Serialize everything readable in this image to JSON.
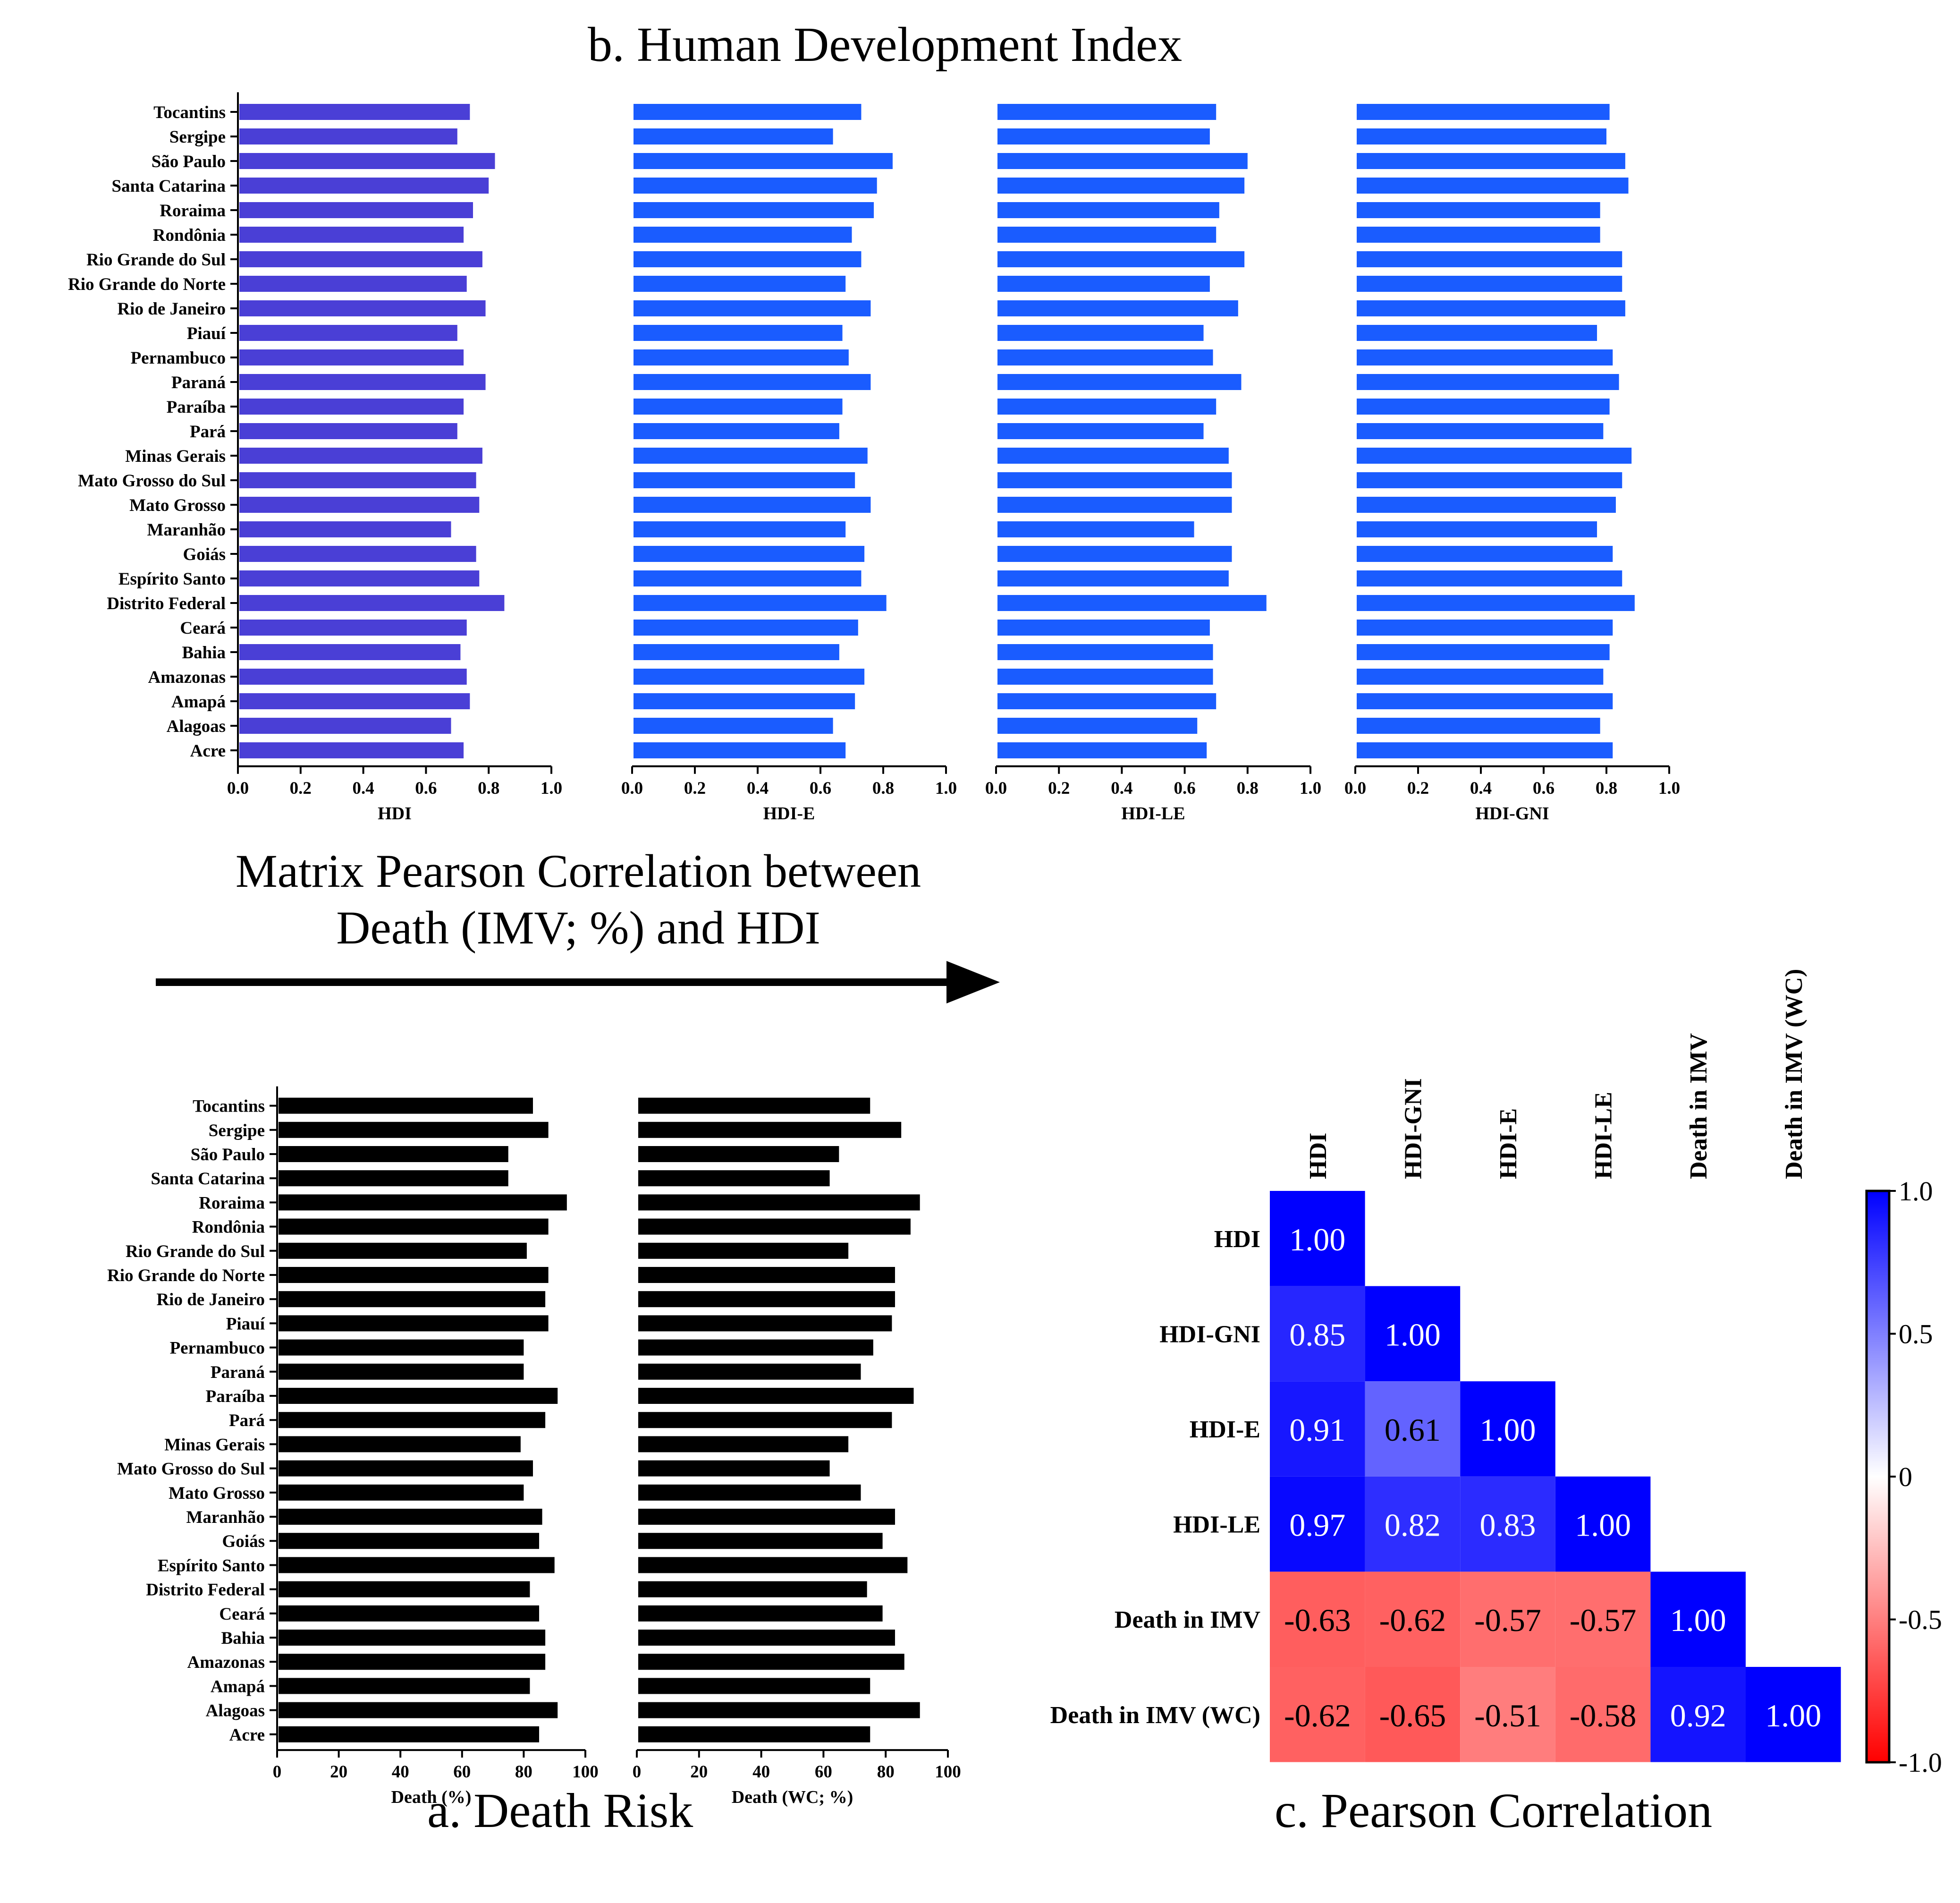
{
  "figure": {
    "panel_b_title": "b. Human Development Index",
    "panel_a_title": "a. Death Risk",
    "panel_c_title": "c. Pearson Correlation",
    "matrix_heading_line1": "Matrix Pearson Correlation between",
    "matrix_heading_line2": "Death (IMV; %) and HDI"
  },
  "colors": {
    "hdi_bar": "#4a3fd6",
    "hdi_sub_bar": "#1a5cff",
    "death_bar": "#000000",
    "corr_positive": "#0000ff",
    "corr_negative": "#ff0000",
    "arrow": "#000000"
  },
  "chart_data": [
    {
      "id": "hdi",
      "type": "bar",
      "orientation": "horizontal",
      "categories": [
        "Tocantins",
        "Sergipe",
        "São Paulo",
        "Santa Catarina",
        "Roraima",
        "Rondônia",
        "Rio Grande do Sul",
        "Rio Grande do Norte",
        "Rio de Janeiro",
        "Piauí",
        "Pernambuco",
        "Paraná",
        "Paraíba",
        "Pará",
        "Minas Gerais",
        "Mato Grosso do Sul",
        "Mato Grosso",
        "Maranhão",
        "Goiás",
        "Espírito Santo",
        "Distrito Federal",
        "Ceará",
        "Bahia",
        "Amazonas",
        "Amapá",
        "Alagoas",
        "Acre"
      ],
      "values": [
        0.74,
        0.7,
        0.82,
        0.8,
        0.75,
        0.72,
        0.78,
        0.73,
        0.79,
        0.7,
        0.72,
        0.79,
        0.72,
        0.7,
        0.78,
        0.76,
        0.77,
        0.68,
        0.76,
        0.77,
        0.85,
        0.73,
        0.71,
        0.73,
        0.74,
        0.68,
        0.72
      ],
      "xlabel": "HDI",
      "xlim": [
        0,
        1.0
      ],
      "xticks": [
        "0.0",
        "0.2",
        "0.4",
        "0.6",
        "0.8",
        "1.0"
      ]
    },
    {
      "id": "hdi-e",
      "type": "bar",
      "orientation": "horizontal",
      "values": [
        0.73,
        0.64,
        0.83,
        0.78,
        0.77,
        0.7,
        0.73,
        0.68,
        0.76,
        0.67,
        0.69,
        0.76,
        0.67,
        0.66,
        0.75,
        0.71,
        0.76,
        0.68,
        0.74,
        0.73,
        0.81,
        0.72,
        0.66,
        0.74,
        0.71,
        0.64,
        0.68
      ],
      "xlabel": "HDI-E",
      "xlim": [
        0,
        1.0
      ],
      "xticks": [
        "0.0",
        "0.2",
        "0.4",
        "0.6",
        "0.8",
        "1.0"
      ]
    },
    {
      "id": "hdi-le",
      "type": "bar",
      "orientation": "horizontal",
      "values": [
        0.7,
        0.68,
        0.8,
        0.79,
        0.71,
        0.7,
        0.79,
        0.68,
        0.77,
        0.66,
        0.69,
        0.78,
        0.7,
        0.66,
        0.74,
        0.75,
        0.75,
        0.63,
        0.75,
        0.74,
        0.86,
        0.68,
        0.69,
        0.69,
        0.7,
        0.64,
        0.67
      ],
      "xlabel": "HDI-LE",
      "xlim": [
        0,
        1.0
      ],
      "xticks": [
        "0.0",
        "0.2",
        "0.4",
        "0.6",
        "0.8",
        "1.0"
      ]
    },
    {
      "id": "hdi-gni",
      "type": "bar",
      "orientation": "horizontal",
      "values": [
        0.81,
        0.8,
        0.86,
        0.87,
        0.78,
        0.78,
        0.85,
        0.85,
        0.86,
        0.77,
        0.82,
        0.84,
        0.81,
        0.79,
        0.88,
        0.85,
        0.83,
        0.77,
        0.82,
        0.85,
        0.89,
        0.82,
        0.81,
        0.79,
        0.82,
        0.78,
        0.82
      ],
      "xlabel": "HDI-GNI",
      "xlim": [
        0,
        1.0
      ],
      "xticks": [
        "0.0",
        "0.2",
        "0.4",
        "0.6",
        "0.8",
        "1.0"
      ]
    },
    {
      "id": "death",
      "type": "bar",
      "orientation": "horizontal",
      "categories": [
        "Tocantins",
        "Sergipe",
        "São Paulo",
        "Santa Catarina",
        "Roraima",
        "Rondônia",
        "Rio Grande do Sul",
        "Rio Grande do Norte",
        "Rio de Janeiro",
        "Piauí",
        "Pernambuco",
        "Paraná",
        "Paraíba",
        "Pará",
        "Minas Gerais",
        "Mato Grosso do Sul",
        "Mato Grosso",
        "Maranhão",
        "Goiás",
        "Espírito Santo",
        "Distrito Federal",
        "Ceará",
        "Bahia",
        "Amazonas",
        "Amapá",
        "Alagoas",
        "Acre"
      ],
      "values": [
        83,
        88,
        75,
        75,
        94,
        88,
        81,
        88,
        87,
        88,
        80,
        80,
        91,
        87,
        79,
        83,
        80,
        86,
        85,
        90,
        82,
        85,
        87,
        87,
        82,
        91,
        85
      ],
      "xlabel": "Death (%)",
      "xlim": [
        0,
        100
      ],
      "xticks": [
        "0",
        "20",
        "40",
        "60",
        "80",
        "100"
      ]
    },
    {
      "id": "death-wc",
      "type": "bar",
      "orientation": "horizontal",
      "values": [
        75,
        85,
        65,
        62,
        91,
        88,
        68,
        83,
        83,
        82,
        76,
        72,
        89,
        82,
        68,
        62,
        72,
        83,
        79,
        87,
        74,
        79,
        83,
        86,
        75,
        91,
        75
      ],
      "xlabel": "Death (WC; %)",
      "xlim": [
        0,
        100
      ],
      "xticks": [
        "0",
        "20",
        "40",
        "60",
        "80",
        "100"
      ]
    },
    {
      "id": "correlation",
      "type": "heatmap",
      "labels": [
        "HDI",
        "HDI-GNI",
        "HDI-E",
        "HDI-LE",
        "Death in IMV",
        "Death in IMV (WC)"
      ],
      "matrix": [
        [
          1.0,
          null,
          null,
          null,
          null,
          null
        ],
        [
          0.85,
          1.0,
          null,
          null,
          null,
          null
        ],
        [
          0.91,
          0.61,
          1.0,
          null,
          null,
          null
        ],
        [
          0.97,
          0.82,
          0.83,
          1.0,
          null,
          null
        ],
        [
          -0.63,
          -0.62,
          -0.57,
          -0.57,
          1.0,
          null
        ],
        [
          -0.62,
          -0.65,
          -0.51,
          -0.58,
          0.92,
          1.0
        ]
      ],
      "value_labels": [
        [
          "1.00"
        ],
        [
          "0.85",
          "1.00"
        ],
        [
          "0.91",
          "0.61",
          "1.00"
        ],
        [
          "0.97",
          "0.82",
          "0.83",
          "1.00"
        ],
        [
          "-0.63",
          "-0.62",
          "-0.57",
          "-0.57",
          "1.00"
        ],
        [
          "-0.62",
          "-0.65",
          "-0.51",
          "-0.58",
          "0.92",
          "1.00"
        ]
      ],
      "colorbar_range": [
        -1.0,
        1.0
      ],
      "colorbar_ticks": [
        "1.0",
        "0.5",
        "0",
        "-0.5",
        "-1.0"
      ]
    }
  ]
}
